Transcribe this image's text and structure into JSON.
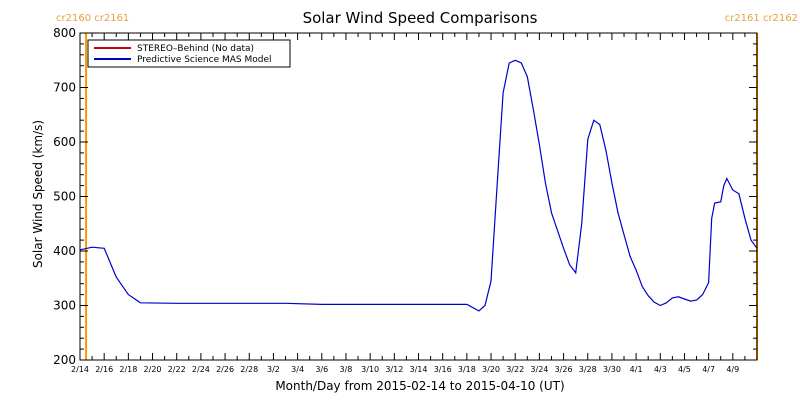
{
  "chart_data": {
    "type": "line",
    "title": "Solar Wind Speed Comparisons",
    "xlabel": "Month/Day from 2015-02-14 to 2015-04-10 (UT)",
    "ylabel": "Solar Wind Speed (km/s)",
    "xlim": [
      "2015-02-14",
      "2015-04-10"
    ],
    "ylim": [
      200,
      800
    ],
    "yticks": [
      200,
      300,
      400,
      500,
      600,
      700,
      800
    ],
    "xticks": [
      "2015-02-14",
      "2015-02-16",
      "2015-02-18",
      "2015-02-20",
      "2015-02-22",
      "2015-02-24",
      "2015-02-26",
      "2015-02-28",
      "2015-03-02",
      "2015-03-04",
      "2015-03-06",
      "2015-03-08",
      "2015-03-10",
      "2015-03-12",
      "2015-03-14",
      "2015-03-16",
      "2015-03-18",
      "2015-03-20",
      "2015-03-22",
      "2015-03-24",
      "2015-03-26",
      "2015-03-28",
      "2015-03-30",
      "2015-04-01",
      "2015-04-03",
      "2015-04-05",
      "2015-04-07",
      "2015-04-09"
    ],
    "xtick_labels": [
      "2/14",
      "2/16",
      "2/18",
      "2/20",
      "2/22",
      "2/24",
      "2/26",
      "2/28",
      "3/2",
      "3/4",
      "3/6",
      "3/8",
      "3/10",
      "3/12",
      "3/14",
      "3/16",
      "3/18",
      "3/20",
      "3/22",
      "3/24",
      "3/26",
      "3/28",
      "3/30",
      "4/1",
      "4/3",
      "4/5",
      "4/7",
      "4/9"
    ],
    "grid": false,
    "legend_position": "top-left",
    "series": [
      {
        "name": "STEREO–Behind (No data)",
        "color": "#cc0000",
        "points": []
      },
      {
        "name": "Predictive Science MAS Model",
        "color": "#0000cc",
        "points": [
          [
            "2015-02-14",
            402
          ],
          [
            "2015-02-15",
            407
          ],
          [
            "2015-02-16",
            405
          ],
          [
            "2015-02-17",
            352
          ],
          [
            "2015-02-18",
            320
          ],
          [
            "2015-02-19",
            305
          ],
          [
            "2015-02-22",
            304
          ],
          [
            "2015-02-26",
            304
          ],
          [
            "2015-03-03",
            304
          ],
          [
            "2015-03-06",
            302
          ],
          [
            "2015-03-12",
            302
          ],
          [
            "2015-03-18",
            302
          ],
          [
            "2015-03-19",
            290
          ],
          [
            "2015-03-19T12:00",
            300
          ],
          [
            "2015-03-20",
            345
          ],
          [
            "2015-03-20T12:00",
            520
          ],
          [
            "2015-03-21",
            690
          ],
          [
            "2015-03-21T12:00",
            745
          ],
          [
            "2015-03-22",
            750
          ],
          [
            "2015-03-22T12:00",
            745
          ],
          [
            "2015-03-23",
            720
          ],
          [
            "2015-03-23T12:00",
            660
          ],
          [
            "2015-03-24",
            595
          ],
          [
            "2015-03-24T12:00",
            525
          ],
          [
            "2015-03-25",
            470
          ],
          [
            "2015-03-26",
            405
          ],
          [
            "2015-03-26T12:00",
            375
          ],
          [
            "2015-03-27",
            360
          ],
          [
            "2015-03-27T12:00",
            450
          ],
          [
            "2015-03-28",
            605
          ],
          [
            "2015-03-28T12:00",
            640
          ],
          [
            "2015-03-29",
            632
          ],
          [
            "2015-03-29T12:00",
            585
          ],
          [
            "2015-03-30",
            525
          ],
          [
            "2015-03-30T12:00",
            470
          ],
          [
            "2015-03-31",
            430
          ],
          [
            "2015-03-31T12:00",
            390
          ],
          [
            "2015-04-01",
            365
          ],
          [
            "2015-04-01T12:00",
            335
          ],
          [
            "2015-04-02",
            318
          ],
          [
            "2015-04-02T12:00",
            306
          ],
          [
            "2015-04-03",
            300
          ],
          [
            "2015-04-03T12:00",
            305
          ],
          [
            "2015-04-04",
            314
          ],
          [
            "2015-04-04T12:00",
            316
          ],
          [
            "2015-04-05",
            312
          ],
          [
            "2015-04-05T12:00",
            308
          ],
          [
            "2015-04-06",
            310
          ],
          [
            "2015-04-06T12:00",
            320
          ],
          [
            "2015-04-07",
            342
          ],
          [
            "2015-04-07T06:00",
            460
          ],
          [
            "2015-04-07T12:00",
            488
          ],
          [
            "2015-04-08",
            490
          ],
          [
            "2015-04-08T06:00",
            520
          ],
          [
            "2015-04-08T12:00",
            533
          ],
          [
            "2015-04-09",
            512
          ],
          [
            "2015-04-09T12:00",
            505
          ],
          [
            "2015-04-10",
            460
          ],
          [
            "2015-04-10T12:00",
            420
          ],
          [
            "2015-04-11",
            405
          ]
        ]
      }
    ],
    "carrington_markers": [
      {
        "date": "2015-02-14T12:00",
        "color": "#ff9900",
        "labels": [
          "cr2160",
          "cr2161"
        ],
        "side": "left"
      },
      {
        "date": "2015-04-11",
        "color": "#ff9900",
        "labels": [
          "cr2161",
          "cr2162"
        ],
        "side": "right"
      }
    ]
  }
}
